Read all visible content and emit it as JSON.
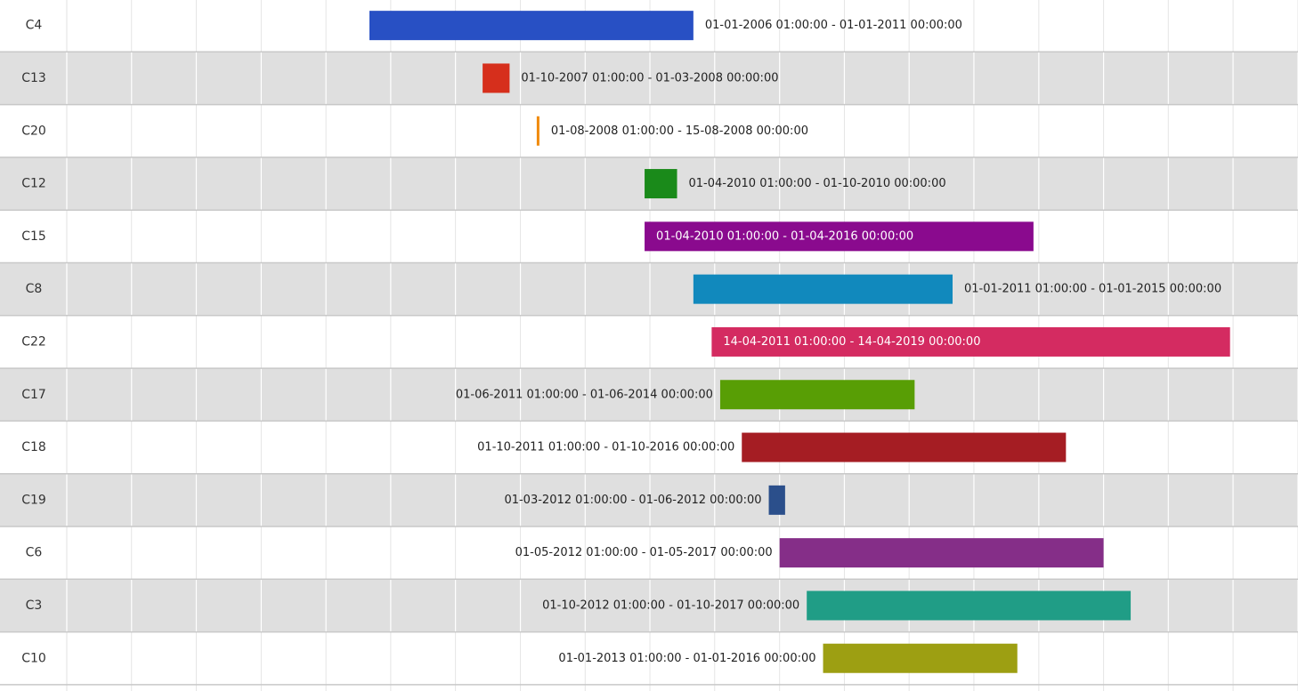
{
  "chart_data": {
    "type": "timeline",
    "x_axis": {
      "min": "2001-05-01",
      "max": "2020-05-01",
      "grid_interval_months": 12,
      "grid": true,
      "tick_labels_visible": false
    },
    "colors": {
      "row_alt": "#dfdfdf",
      "row_normal": "#ffffff",
      "grid": "#ffffff",
      "grid_on_white": "#e2e2e2",
      "row_separator": "#c8c8c8"
    },
    "rows": [
      {
        "label": "C4",
        "start": "2006-01-01",
        "end": "2011-01-01",
        "text": "01-01-2006 01:00:00 - 01-01-2011 00:00:00",
        "color": "#2850c4",
        "label_position": "right"
      },
      {
        "label": "C13",
        "start": "2007-10-01",
        "end": "2008-03-01",
        "text": "01-10-2007 01:00:00 - 01-03-2008 00:00:00",
        "color": "#d62f1c",
        "label_position": "right"
      },
      {
        "label": "C20",
        "start": "2008-08-01",
        "end": "2008-08-15",
        "text": "01-08-2008 01:00:00 - 15-08-2008 00:00:00",
        "color": "#f08a0c",
        "label_position": "right"
      },
      {
        "label": "C12",
        "start": "2010-04-01",
        "end": "2010-10-01",
        "text": "01-04-2010 01:00:00 - 01-10-2010 00:00:00",
        "color": "#1a8a1a",
        "label_position": "right"
      },
      {
        "label": "C15",
        "start": "2010-04-01",
        "end": "2016-04-01",
        "text": "01-04-2010 01:00:00 - 01-04-2016 00:00:00",
        "color": "#8a0a8e",
        "label_position": "inside"
      },
      {
        "label": "C8",
        "start": "2011-01-01",
        "end": "2015-01-01",
        "text": "01-01-2011 01:00:00 - 01-01-2015 00:00:00",
        "color": "#1189bd",
        "label_position": "right"
      },
      {
        "label": "C22",
        "start": "2011-04-14",
        "end": "2019-04-14",
        "text": "14-04-2011 01:00:00 - 14-04-2019 00:00:00",
        "color": "#d42b61",
        "label_position": "inside"
      },
      {
        "label": "C17",
        "start": "2011-06-01",
        "end": "2014-06-01",
        "text": "01-06-2011 01:00:00 - 01-06-2014 00:00:00",
        "color": "#589e05",
        "label_position": "left"
      },
      {
        "label": "C18",
        "start": "2011-10-01",
        "end": "2016-10-01",
        "text": "01-10-2011 01:00:00 - 01-10-2016 00:00:00",
        "color": "#a51d23",
        "label_position": "left"
      },
      {
        "label": "C19",
        "start": "2012-03-01",
        "end": "2012-06-01",
        "text": "01-03-2012 01:00:00 - 01-06-2012 00:00:00",
        "color": "#2b4f8b",
        "label_position": "left"
      },
      {
        "label": "C6",
        "start": "2012-05-01",
        "end": "2017-05-01",
        "text": "01-05-2012 01:00:00 - 01-05-2017 00:00:00",
        "color": "#852e88",
        "label_position": "left"
      },
      {
        "label": "C3",
        "start": "2012-10-01",
        "end": "2017-10-01",
        "text": "01-10-2012 01:00:00 - 01-10-2017 00:00:00",
        "color": "#209d86",
        "label_position": "left"
      },
      {
        "label": "C10",
        "start": "2013-01-01",
        "end": "2016-01-01",
        "text": "01-01-2013 01:00:00 - 01-01-2016 00:00:00",
        "color": "#9d9f12",
        "label_position": "left"
      }
    ]
  }
}
